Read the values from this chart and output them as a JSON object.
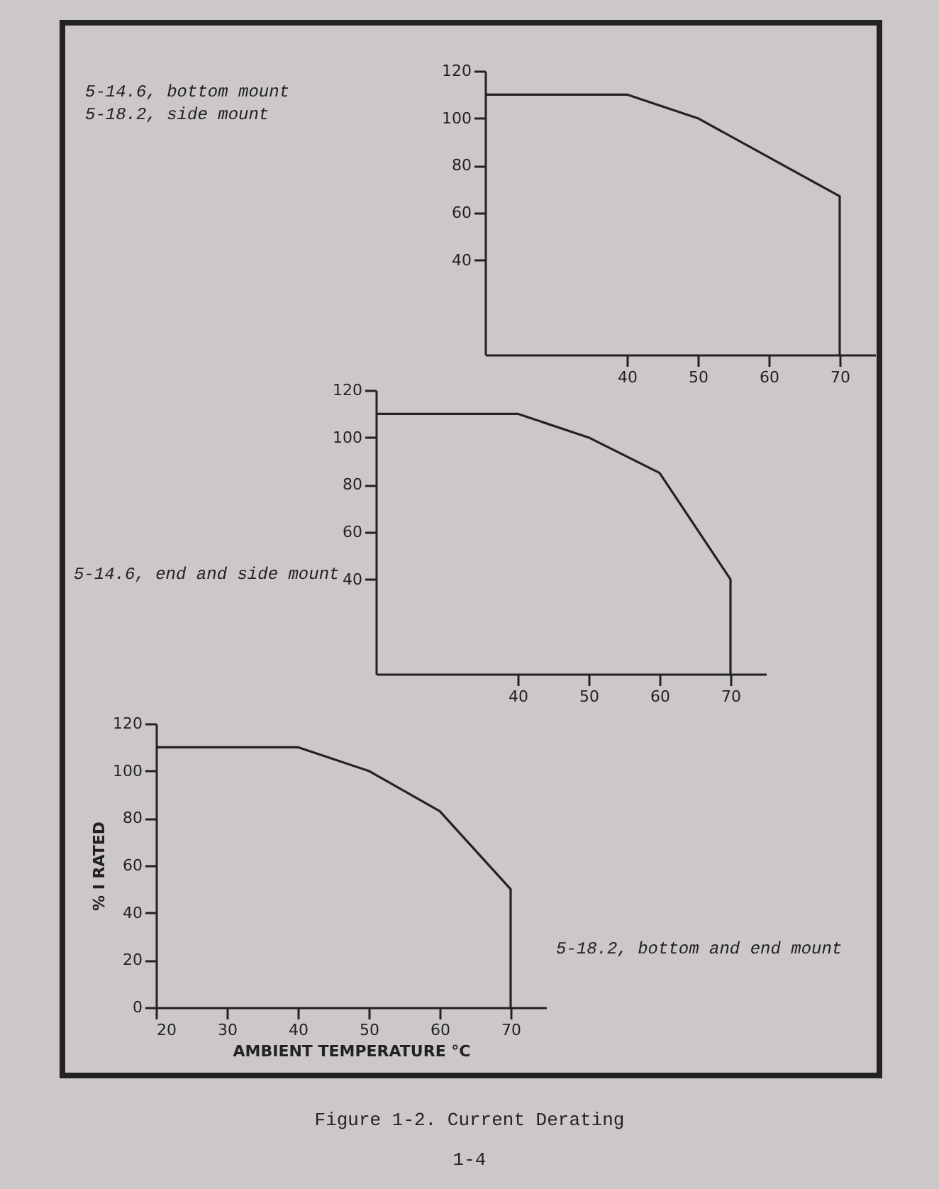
{
  "chart_data": [
    {
      "type": "line",
      "x": [
        20,
        40,
        50,
        70,
        70
      ],
      "xlim": [
        20,
        75
      ],
      "ylim": [
        0,
        120
      ],
      "xticks": [
        40,
        50,
        60,
        70
      ],
      "yticks": [
        40,
        60,
        80,
        100,
        120
      ],
      "series": [
        {
          "color": "#222222",
          "values": [
            110,
            110,
            100,
            67,
            0
          ]
        }
      ],
      "annotations": [
        "5-14.6, bottom mount",
        "5-18.2, side mount"
      ]
    },
    {
      "type": "line",
      "x": [
        20,
        40,
        50,
        60,
        70,
        70
      ],
      "xlim": [
        20,
        75
      ],
      "ylim": [
        0,
        120
      ],
      "xticks": [
        40,
        50,
        60,
        70
      ],
      "yticks": [
        40,
        60,
        80,
        100,
        120
      ],
      "series": [
        {
          "color": "#222222",
          "values": [
            110,
            110,
            100,
            85,
            40,
            0
          ]
        }
      ],
      "annotations": [
        "5-14.6, end and side mount"
      ]
    },
    {
      "type": "line",
      "x": [
        20,
        40,
        50,
        60,
        70,
        70
      ],
      "xlim": [
        20,
        75
      ],
      "ylim": [
        0,
        120
      ],
      "xticks": [
        20,
        30,
        40,
        50,
        60,
        70
      ],
      "yticks": [
        0,
        20,
        40,
        60,
        80,
        100,
        120
      ],
      "xlabel": "AMBIENT TEMPERATURE °C",
      "ylabel": "% I RATED",
      "series": [
        {
          "color": "#222222",
          "values": [
            110,
            110,
            100,
            83,
            50,
            0
          ]
        }
      ],
      "annotations": [
        "5-18.2, bottom and end mount",
        "Figure 1-2.  Current Derating",
        "1-4"
      ]
    }
  ]
}
